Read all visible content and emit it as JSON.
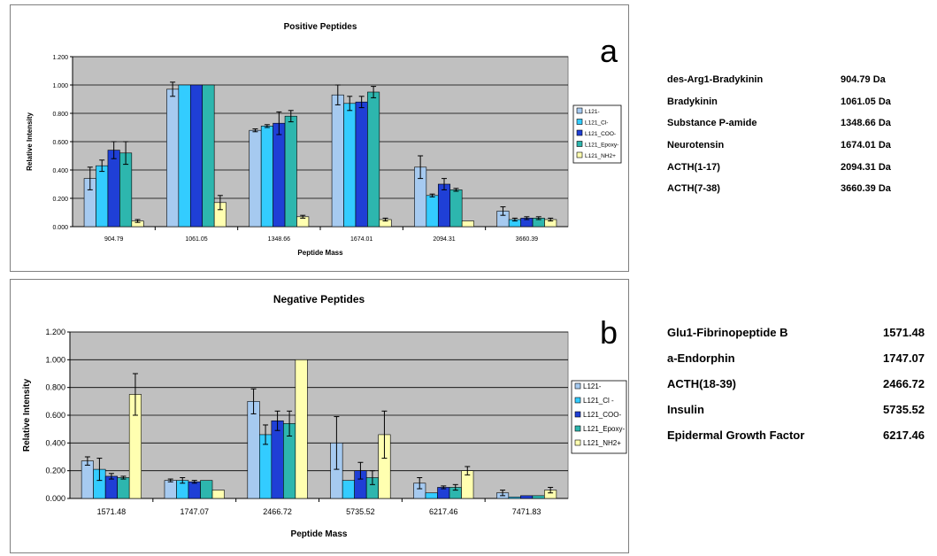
{
  "chart_data": [
    {
      "type": "bar",
      "panel_label": "a",
      "title": "Positive Peptides",
      "xlabel": "Peptide Mass",
      "ylabel": "Relative Intensity",
      "categories": [
        "904.79",
        "1061.05",
        "1348.66",
        "1674.01",
        "2094.31",
        "3660.39"
      ],
      "ylim": [
        0,
        1.2
      ],
      "yticks": [
        "0.000",
        "0.200",
        "0.400",
        "0.600",
        "0.800",
        "1.000",
        "1.200"
      ],
      "grid": true,
      "legend_position": "right",
      "series": [
        {
          "name": "L121-",
          "color": "#a6caf0",
          "values": [
            0.34,
            0.97,
            0.68,
            0.93,
            0.42,
            0.11
          ],
          "errors": [
            0.08,
            0.05,
            0.01,
            0.07,
            0.08,
            0.03
          ]
        },
        {
          "name": "L121_Cl-",
          "color": "#33ccff",
          "values": [
            0.43,
            1.0,
            0.71,
            0.87,
            0.22,
            0.05
          ],
          "errors": [
            0.04,
            0.0,
            0.01,
            0.05,
            0.01,
            0.01
          ]
        },
        {
          "name": "L121_COO-",
          "color": "#1f3fd6",
          "values": [
            0.54,
            1.0,
            0.73,
            0.88,
            0.3,
            0.06
          ],
          "errors": [
            0.06,
            0.0,
            0.08,
            0.04,
            0.04,
            0.01
          ]
        },
        {
          "name": "L121_Epoxy-",
          "color": "#2db6ae",
          "values": [
            0.52,
            1.0,
            0.78,
            0.95,
            0.26,
            0.06
          ],
          "errors": [
            0.08,
            0.0,
            0.04,
            0.04,
            0.01,
            0.01
          ]
        },
        {
          "name": "L121_NH2+",
          "color": "#ffffb0",
          "values": [
            0.04,
            0.17,
            0.07,
            0.05,
            0.04,
            0.05
          ],
          "errors": [
            0.01,
            0.05,
            0.01,
            0.01,
            0.0,
            0.01
          ]
        }
      ],
      "legend_labels": [
        "L121-",
        "L121_Cl-",
        "L121_COO-",
        "L121_Epoxy-",
        "L121_NH2+"
      ]
    },
    {
      "type": "bar",
      "panel_label": "b",
      "title": "Negative Peptides",
      "xlabel": "Peptide Mass",
      "ylabel": "Relative Intensity",
      "categories": [
        "1571.48",
        "1747.07",
        "2466.72",
        "5735.52",
        "6217.46",
        "7471.83"
      ],
      "ylim": [
        0,
        1.2
      ],
      "yticks": [
        "0.000",
        "0.200",
        "0.400",
        "0.600",
        "0.800",
        "1.000",
        "1.200"
      ],
      "grid": true,
      "legend_position": "right",
      "series": [
        {
          "name": "L121-",
          "color": "#a6caf0",
          "values": [
            0.27,
            0.13,
            0.7,
            0.4,
            0.11,
            0.04
          ],
          "errors": [
            0.03,
            0.01,
            0.09,
            0.19,
            0.04,
            0.02
          ]
        },
        {
          "name": "L121_Cl -",
          "color": "#33ccff",
          "values": [
            0.21,
            0.13,
            0.46,
            0.13,
            0.04,
            0.01
          ],
          "errors": [
            0.08,
            0.02,
            0.07,
            0.0,
            0.0,
            0.0
          ]
        },
        {
          "name": "L121_COO-",
          "color": "#1f3fd6",
          "values": [
            0.16,
            0.12,
            0.56,
            0.2,
            0.08,
            0.02
          ],
          "errors": [
            0.02,
            0.01,
            0.07,
            0.06,
            0.01,
            0.0
          ]
        },
        {
          "name": "L121_Epoxy-",
          "color": "#2db6ae",
          "values": [
            0.15,
            0.13,
            0.54,
            0.15,
            0.08,
            0.02
          ],
          "errors": [
            0.01,
            0.0,
            0.09,
            0.05,
            0.02,
            0.0
          ]
        },
        {
          "name": "L121_NH2+",
          "color": "#ffffb0",
          "values": [
            0.75,
            0.06,
            1.0,
            0.46,
            0.2,
            0.06
          ],
          "errors": [
            0.15,
            0.0,
            0.0,
            0.17,
            0.03,
            0.02
          ]
        }
      ],
      "legend_labels": [
        "L121-",
        "L121_Cl -",
        "L121_COO-",
        "L121_Epoxy-",
        "L121_NH2+"
      ]
    }
  ],
  "reference_tables": {
    "a": [
      {
        "name": "des-Arg1-Bradykinin",
        "mass": "904.79 Da"
      },
      {
        "name": "Bradykinin",
        "mass": "1061.05 Da"
      },
      {
        "name": "Substance P-amide",
        "mass": "1348.66 Da"
      },
      {
        "name": "Neurotensin",
        "mass": "1674.01 Da"
      },
      {
        "name": "ACTH(1-17)",
        "mass": "2094.31 Da"
      },
      {
        "name": "ACTH(7-38)",
        "mass": "3660.39 Da"
      }
    ],
    "b": [
      {
        "name": "Glu1-Fibrinopeptide B",
        "mass": "1571.48"
      },
      {
        "name": "a-Endorphin",
        "mass": "1747.07"
      },
      {
        "name": "ACTH(18-39)",
        "mass": "2466.72"
      },
      {
        "name": "Insulin",
        "mass": "5735.52"
      },
      {
        "name": "Epidermal Growth Factor",
        "mass": "6217.46"
      }
    ]
  },
  "colors": {
    "plot_background": "#c0c0c0",
    "gridline": "#000000",
    "error_bar": "#000000"
  }
}
